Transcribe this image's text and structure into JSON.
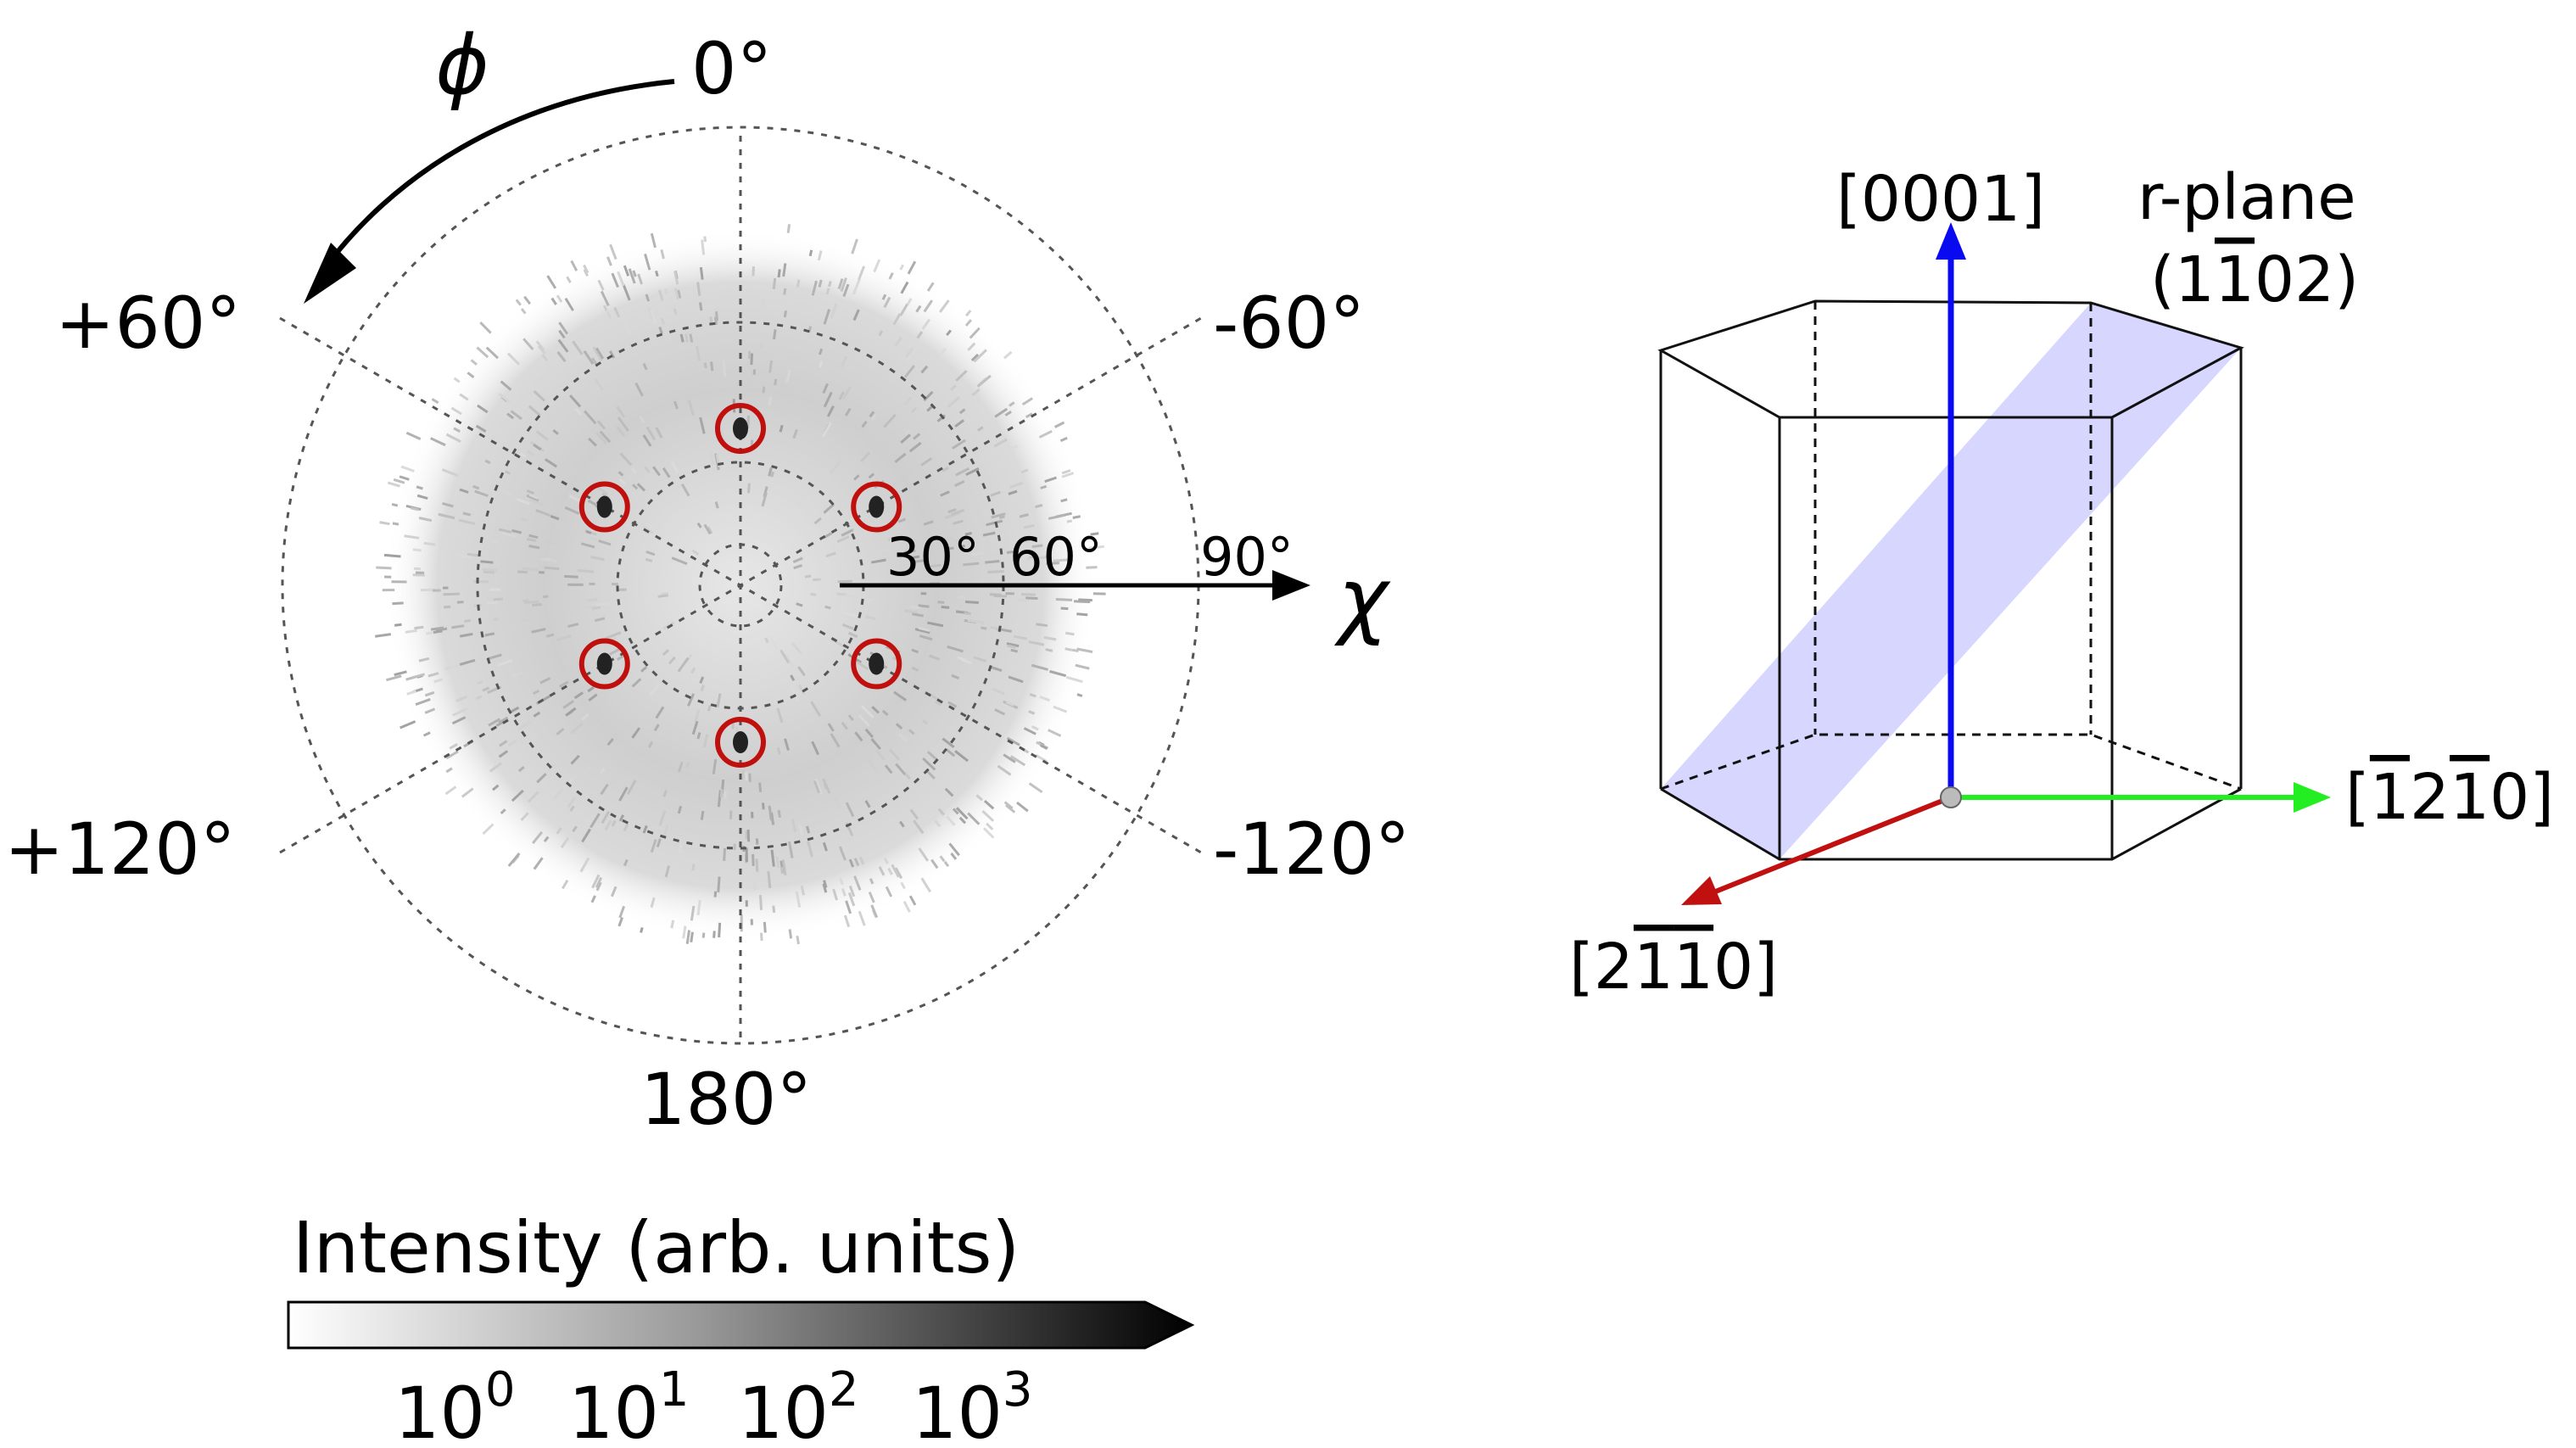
{
  "pole_figure": {
    "phi_symbol": "ϕ",
    "chi_symbol": "χ",
    "phi_labels": {
      "top": "0°",
      "upper_left": "+60°",
      "upper_right": "-60°",
      "lower_left": "+120°",
      "lower_right": "-120°",
      "bottom": "180°"
    },
    "chi_labels": {
      "c30": "30°",
      "c60": "60°",
      "c90": "90°"
    },
    "highlight_color": "#c0100e"
  },
  "colorbar": {
    "title": "Intensity (arb. units)",
    "ticks": [
      {
        "base": "10",
        "exp": "0"
      },
      {
        "base": "10",
        "exp": "1"
      },
      {
        "base": "10",
        "exp": "2"
      },
      {
        "base": "10",
        "exp": "3"
      }
    ]
  },
  "crystal": {
    "c_axis": {
      "label": "[0001]",
      "color": "#0a0af0"
    },
    "plane": {
      "name": "r-plane",
      "index_open": "(1",
      "index_bar": "1",
      "index_rest": "02)",
      "color": "#c8c8ff"
    },
    "a1_axis": {
      "pre": "[",
      "bar1": "1",
      "mid": "2",
      "bar2": "1",
      "post": "0]",
      "color": "#22ee22"
    },
    "a2_axis": {
      "pre": "[2",
      "bar1": "1",
      "bar2": "1",
      "post": "0]",
      "color": "#c01010"
    }
  }
}
